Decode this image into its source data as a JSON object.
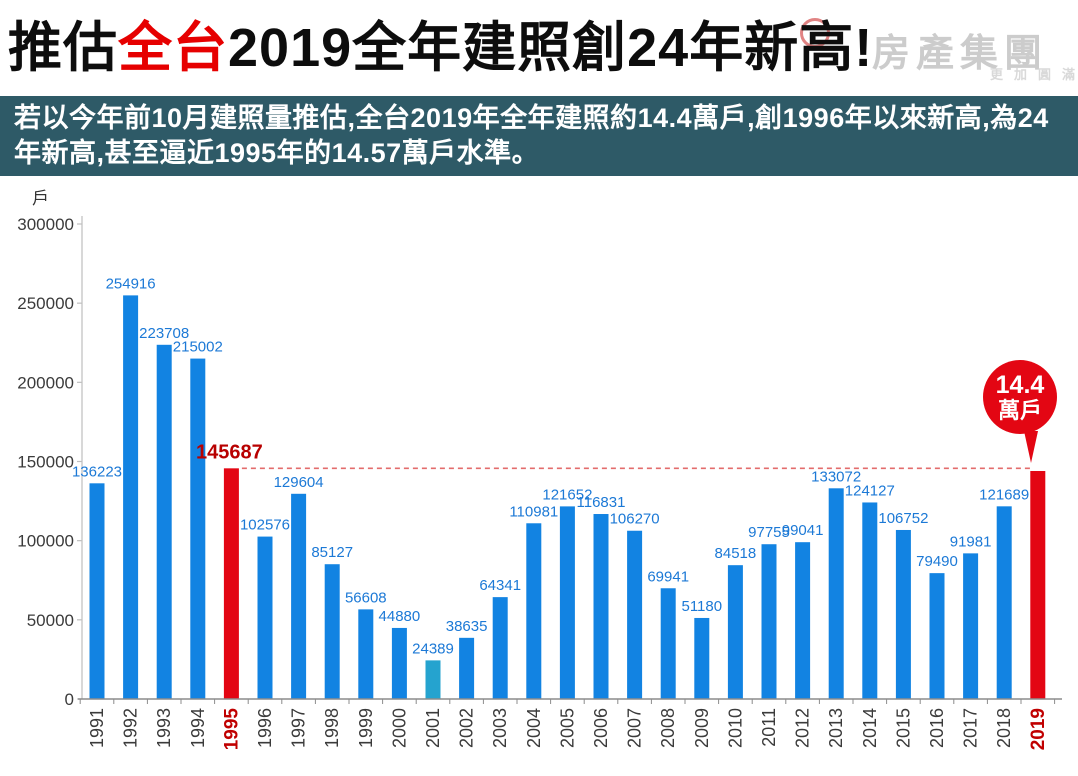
{
  "header": {
    "title_prefix": "推估",
    "title_highlight": "全台",
    "title_suffix": "2019全年建照創24年新高!",
    "watermark_main": "房產集團",
    "watermark_sub": "更加圓滿"
  },
  "subtitle": "若以今年前10月建照量推估,全台2019年全年建照約14.4萬戶,創1996年以來新高,為24年新高,甚至逼近1995年的14.57萬戶水準。",
  "badge": {
    "line1": "14.4",
    "line2": "萬戶"
  },
  "colors": {
    "bar_blue": "#1283e2",
    "bar_cyan": "#25a3cf",
    "bar_red": "#e30613",
    "value_label_blue": "#1c79d6",
    "value_label_red": "#b80000",
    "dashed_line": "#e36c6c",
    "axis_y": "#bfbfbf",
    "axis_x": "#8c8c8c",
    "tick_label": "#3b3b3b",
    "tick_label_red": "#c00000",
    "band_bg": "#2e5a67",
    "title_red": "#e60000"
  },
  "chart_data": {
    "type": "bar",
    "title": "推估全台2019全年建照創24年新高!",
    "unit_label": "戶",
    "categories": [
      1991,
      1992,
      1993,
      1994,
      1995,
      1996,
      1997,
      1998,
      1999,
      2000,
      2001,
      2002,
      2003,
      2004,
      2005,
      2006,
      2007,
      2008,
      2009,
      2010,
      2011,
      2012,
      2013,
      2014,
      2015,
      2016,
      2017,
      2018,
      2019
    ],
    "values": [
      136223,
      254916,
      223708,
      215002,
      145687,
      102576,
      129604,
      85127,
      56608,
      44880,
      24389,
      38635,
      64341,
      110981,
      121652,
      116831,
      106270,
      69941,
      51180,
      84518,
      97755,
      99041,
      133072,
      124127,
      106752,
      79490,
      91981,
      121689,
      144000
    ],
    "ylim": [
      0,
      300000
    ],
    "ytick_step": 50000,
    "yticks": [
      0,
      50000,
      100000,
      150000,
      200000,
      250000,
      300000
    ],
    "grid": false,
    "legend": false,
    "highlight_red_years": [
      1995,
      2019
    ],
    "cyan_year": 2001,
    "hide_value_label_years": [
      2019
    ],
    "special_label": {
      "year": 1995,
      "text": "145687"
    },
    "reference_line": {
      "value": 145687,
      "style": "dashed",
      "from_year": 1995,
      "to_year": 2019
    },
    "badge": {
      "year": 2019,
      "text": "14.4萬戶"
    }
  }
}
